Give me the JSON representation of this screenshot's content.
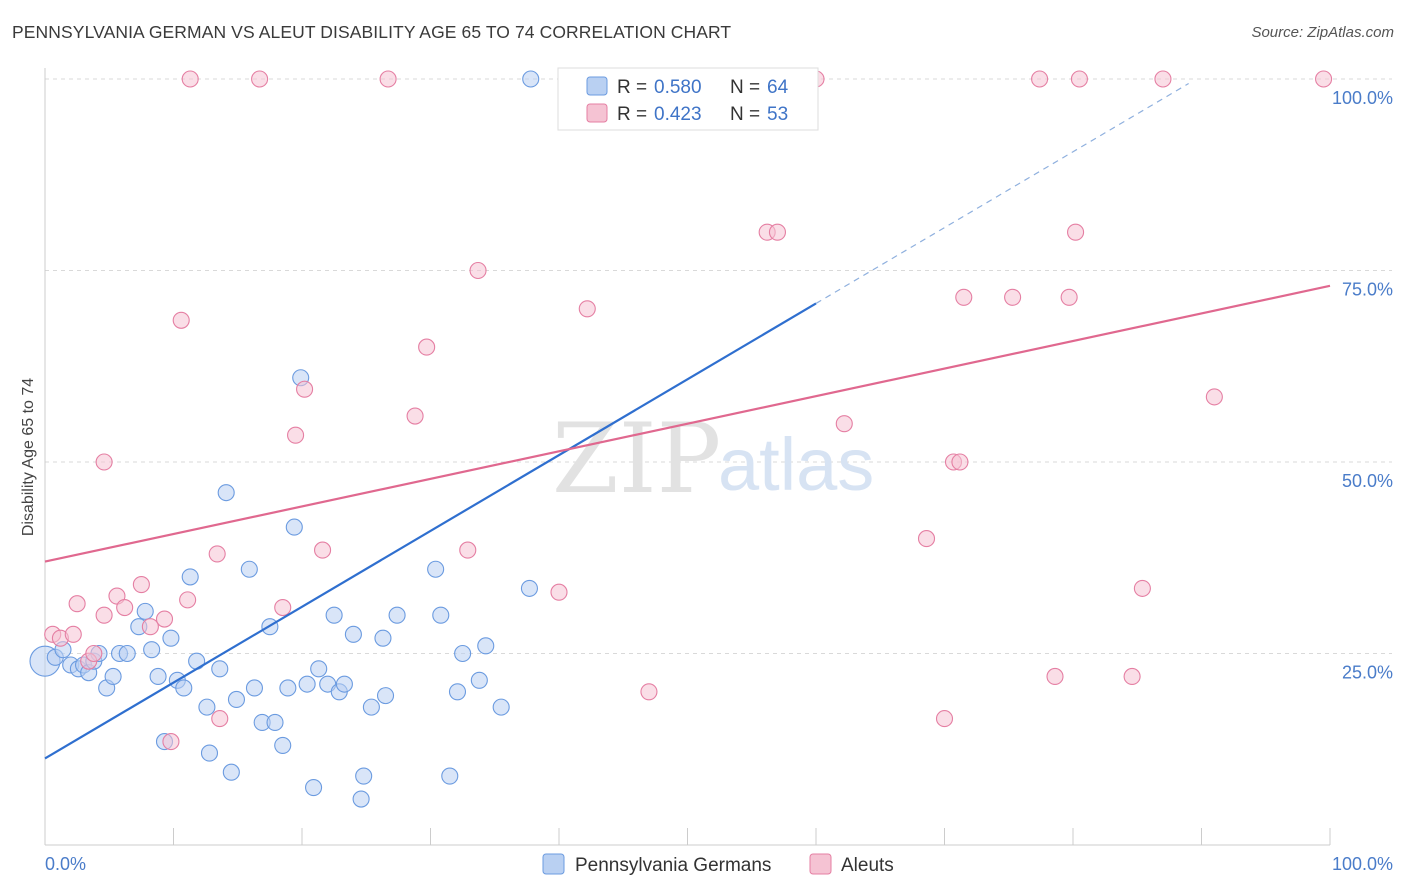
{
  "title": "PENNSYLVANIA GERMAN VS ALEUT DISABILITY AGE 65 TO 74 CORRELATION CHART",
  "source": "Source: ZipAtlas.com",
  "watermark": {
    "part1": "ZIP",
    "part2": "atlas"
  },
  "colors": {
    "blue": "#6b9be0",
    "blue_fill": "#b9d0f2",
    "pink": "#e57fa3",
    "pink_fill": "#f5c3d3",
    "blue_line": "#2f6fcf",
    "pink_line": "#e0688f"
  },
  "legend": {
    "r_label": "R = ",
    "n_label": "N = ",
    "items": [
      {
        "r": "0.580",
        "n": "64"
      },
      {
        "r": "0.423",
        "n": "53"
      }
    ]
  },
  "chart_data": {
    "type": "scatter",
    "title": "PENNSYLVANIA GERMAN VS ALEUT DISABILITY AGE 65 TO 74 CORRELATION CHART",
    "ylabel": "Disability Age 65 to 74",
    "xlabel": "",
    "xlim": [
      0,
      100
    ],
    "ylim": [
      0,
      100
    ],
    "x_tick_labels": [
      "0.0%",
      "100.0%"
    ],
    "y_tick_labels": [
      {
        "value": 25,
        "label": "25.0%"
      },
      {
        "value": 50,
        "label": "50.0%"
      },
      {
        "value": 75,
        "label": "75.0%"
      },
      {
        "value": 100,
        "label": "100.0%"
      }
    ],
    "grid": true,
    "legend_position": "bottom-center",
    "series": [
      {
        "name": "Pennsylvania Germans",
        "r": 0.58,
        "n": 64,
        "trend": {
          "x0": 0,
          "y0": 11.3,
          "x1": 60,
          "y1": 70.7,
          "dashed_to_x": 89
        },
        "points": [
          [
            0,
            24
          ],
          [
            0.8,
            24.5
          ],
          [
            1.4,
            25.5
          ],
          [
            2,
            23.5
          ],
          [
            2.6,
            23
          ],
          [
            3,
            23.5
          ],
          [
            3.4,
            22.5
          ],
          [
            3.8,
            24
          ],
          [
            4.2,
            25
          ],
          [
            4.8,
            20.5
          ],
          [
            5.3,
            22
          ],
          [
            5.8,
            25
          ],
          [
            6.4,
            25
          ],
          [
            7.3,
            28.5
          ],
          [
            7.8,
            30.5
          ],
          [
            8.3,
            25.5
          ],
          [
            8.8,
            22
          ],
          [
            9.3,
            13.5
          ],
          [
            9.8,
            27
          ],
          [
            10.3,
            21.5
          ],
          [
            10.8,
            20.5
          ],
          [
            11.3,
            35
          ],
          [
            11.8,
            24
          ],
          [
            12.6,
            18
          ],
          [
            12.8,
            12
          ],
          [
            13.6,
            23
          ],
          [
            14.1,
            46
          ],
          [
            14.5,
            9.5
          ],
          [
            14.9,
            19
          ],
          [
            15.9,
            36
          ],
          [
            16.3,
            20.5
          ],
          [
            16.9,
            16
          ],
          [
            17.5,
            28.5
          ],
          [
            17.9,
            16
          ],
          [
            18.5,
            13
          ],
          [
            18.9,
            20.5
          ],
          [
            19.4,
            41.5
          ],
          [
            19.9,
            61
          ],
          [
            20.4,
            21
          ],
          [
            20.9,
            7.5
          ],
          [
            21.3,
            23
          ],
          [
            22,
            21
          ],
          [
            22.5,
            30
          ],
          [
            22.9,
            20
          ],
          [
            23.3,
            21
          ],
          [
            24,
            27.5
          ],
          [
            24.6,
            6
          ],
          [
            24.8,
            9
          ],
          [
            25.4,
            18
          ],
          [
            26.3,
            27
          ],
          [
            26.5,
            19.5
          ],
          [
            27.4,
            30
          ],
          [
            30.4,
            36
          ],
          [
            30.8,
            30
          ],
          [
            31.5,
            9
          ],
          [
            32.1,
            20
          ],
          [
            32.5,
            25
          ],
          [
            33.8,
            21.5
          ],
          [
            34.3,
            26
          ],
          [
            35.5,
            18
          ],
          [
            37.7,
            33.5
          ],
          [
            37.8,
            100
          ],
          [
            41.2,
            100
          ],
          [
            46,
            100
          ]
        ]
      },
      {
        "name": "Aleuts",
        "r": 0.423,
        "n": 53,
        "trend": {
          "x0": 0,
          "y0": 37,
          "x1": 100,
          "y1": 73
        },
        "points": [
          [
            0.6,
            27.5
          ],
          [
            1.2,
            27
          ],
          [
            2.2,
            27.5
          ],
          [
            2.5,
            31.5
          ],
          [
            3.4,
            24
          ],
          [
            3.8,
            25
          ],
          [
            4.6,
            30
          ],
          [
            4.6,
            50
          ],
          [
            5.6,
            32.5
          ],
          [
            6.2,
            31
          ],
          [
            7.5,
            34
          ],
          [
            8.2,
            28.5
          ],
          [
            9.3,
            29.5
          ],
          [
            9.8,
            13.5
          ],
          [
            10.6,
            68.5
          ],
          [
            11.1,
            32
          ],
          [
            11.3,
            100
          ],
          [
            13.4,
            38
          ],
          [
            13.6,
            16.5
          ],
          [
            16.7,
            100
          ],
          [
            18.5,
            31
          ],
          [
            19.5,
            53.5
          ],
          [
            20.2,
            59.5
          ],
          [
            21.6,
            38.5
          ],
          [
            26.7,
            100
          ],
          [
            28.8,
            56
          ],
          [
            29.7,
            65
          ],
          [
            32.9,
            38.5
          ],
          [
            33.7,
            75
          ],
          [
            40,
            33
          ],
          [
            42.2,
            70
          ],
          [
            47,
            20
          ],
          [
            50,
            100
          ],
          [
            56.2,
            80
          ],
          [
            57,
            80
          ],
          [
            60,
            100
          ],
          [
            62.2,
            55
          ],
          [
            68.6,
            40
          ],
          [
            70,
            16.5
          ],
          [
            70.7,
            50
          ],
          [
            71.2,
            50
          ],
          [
            71.5,
            71.5
          ],
          [
            75.3,
            71.5
          ],
          [
            77.4,
            100
          ],
          [
            78.6,
            22
          ],
          [
            79.7,
            71.5
          ],
          [
            80.2,
            80
          ],
          [
            80.5,
            100
          ],
          [
            84.6,
            22
          ],
          [
            85.4,
            33.5
          ],
          [
            87,
            100
          ],
          [
            91,
            58.5
          ],
          [
            99.5,
            100
          ]
        ]
      }
    ]
  }
}
